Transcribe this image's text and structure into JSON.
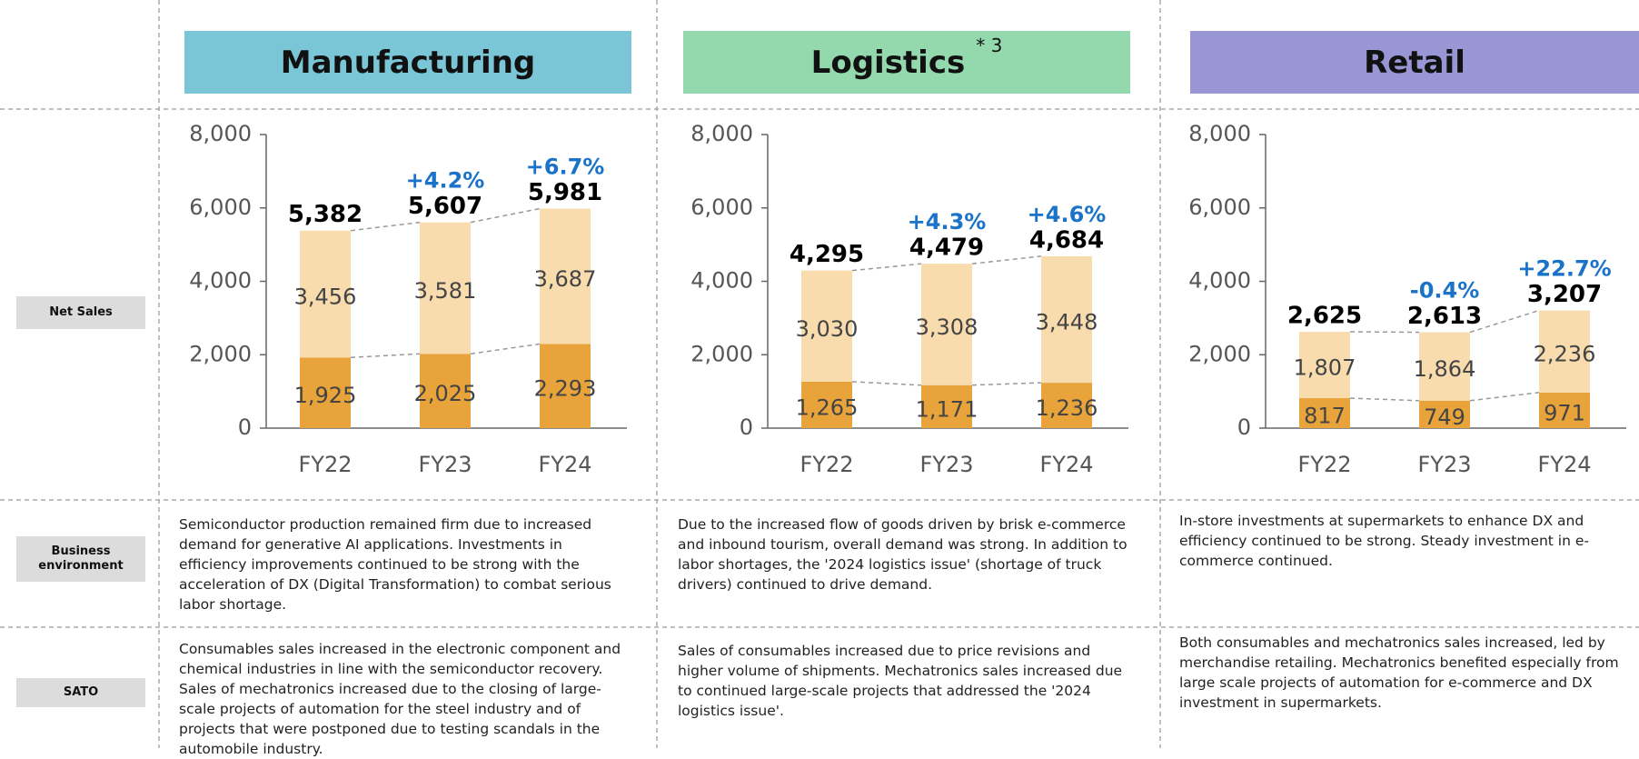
{
  "row_labels": [
    "Net Sales",
    "Business environment",
    "SATO"
  ],
  "panels": [
    {
      "title": "Manufacturing",
      "environment": "Semiconductor production remained firm due to increased demand for generative AI applications. Investments in efficiency improvements continued to be strong with the acceleration of DX (Digital Transformation) to combat serious labor shortage.",
      "sato": "Consumables sales increased in the electronic component and chemical industries in line with the semiconductor recovery. Sales of mechatronics increased due to the closing of large-scale projects of automation for the steel industry and of projects that were postponed due to testing scandals in the automobile industry."
    },
    {
      "title": "Logistics",
      "note": "* 3",
      "environment": "Due to the increased flow of goods driven by brisk e-commerce and inbound tourism, overall demand was strong. In addition to labor shortages, the '2024 logistics issue' (shortage of truck drivers) continued to drive demand.",
      "sato": "Sales of consumables increased due to price revisions and higher volume of shipments. Mechatronics sales increased due to continued large-scale projects that addressed the '2024 logistics issue'."
    },
    {
      "title": "Retail",
      "environment": "In-store investments at supermarkets to enhance DX and efficiency continued to be strong. Steady investment in e-commerce continued.",
      "sato": "Both consumables and mechatronics sales increased, led by merchandise retailing. Mechatronics benefited especially from large scale projects of automation for e-commerce and DX investment in supermarkets."
    }
  ],
  "chart_data": [
    {
      "type": "stacked_bar",
      "categories": [
        "FY22",
        "FY23",
        "FY24"
      ],
      "series": [
        {
          "color": "#e8a33a",
          "values": [
            1925,
            2025,
            2293
          ],
          "value_labels": [
            "1,925",
            "2,025",
            "2,293"
          ]
        },
        {
          "color": "#f8dcae",
          "values": [
            3456,
            3581,
            3687
          ],
          "value_labels": [
            "3,456",
            "3,581",
            "3,687"
          ]
        }
      ],
      "totals": [
        5382,
        5607,
        5981
      ],
      "total_labels": [
        "5,382",
        "5,607",
        "5,981"
      ],
      "growth": [
        null,
        4.2,
        6.7
      ],
      "growth_labels": [
        null,
        "+4.2%",
        "+6.7%"
      ],
      "ylim": [
        0,
        8000
      ],
      "yticks": [
        0,
        {
          "value": 2000,
          "label": "2,000"
        },
        {
          "value": 4000,
          "label": "4,000"
        },
        {
          "value": 6000,
          "label": "6,000"
        },
        {
          "value": 8000,
          "label": "8,000"
        }
      ]
    },
    {
      "type": "stacked_bar",
      "categories": [
        "FY22",
        "FY23",
        "FY24"
      ],
      "series": [
        {
          "color": "#e8a33a",
          "values": [
            1265,
            1171,
            1236
          ],
          "value_labels": [
            "1,265",
            "1,171",
            "1,236"
          ]
        },
        {
          "color": "#f8dcae",
          "values": [
            3030,
            3308,
            3448
          ],
          "value_labels": [
            "3,030",
            "3,308",
            "3,448"
          ]
        }
      ],
      "totals": [
        4295,
        4479,
        4684
      ],
      "total_labels": [
        "4,295",
        "4,479",
        "4,684"
      ],
      "growth": [
        null,
        4.3,
        4.6
      ],
      "growth_labels": [
        null,
        "+4.3%",
        "+4.6%"
      ],
      "ylim": [
        0,
        8000
      ],
      "yticks": [
        0,
        {
          "value": 2000,
          "label": "2,000"
        },
        {
          "value": 4000,
          "label": "4,000"
        },
        {
          "value": 6000,
          "label": "6,000"
        },
        {
          "value": 8000,
          "label": "8,000"
        }
      ]
    },
    {
      "type": "stacked_bar",
      "categories": [
        "FY22",
        "FY23",
        "FY24"
      ],
      "series": [
        {
          "color": "#e8a33a",
          "values": [
            817,
            749,
            971
          ]
        },
        {
          "color": "#f8dcae",
          "values": [
            1807,
            1864,
            2236
          ],
          "value_labels": [
            "1,807",
            "1,864",
            "2,236"
          ]
        }
      ],
      "totals": [
        2625,
        2613,
        3207
      ],
      "total_labels": [
        "2,625",
        "2,613",
        "3,207"
      ],
      "growth": [
        null,
        -0.4,
        22.7
      ],
      "growth_labels": [
        null,
        "-0.4%",
        "+22.7%"
      ],
      "ylim": [
        0,
        8000
      ],
      "yticks": [
        0,
        {
          "value": 2000,
          "label": "2,000"
        },
        {
          "value": 4000,
          "label": "4,000"
        },
        {
          "value": 6000,
          "label": "6,000"
        },
        {
          "value": 8000,
          "label": "8,000"
        }
      ]
    }
  ]
}
